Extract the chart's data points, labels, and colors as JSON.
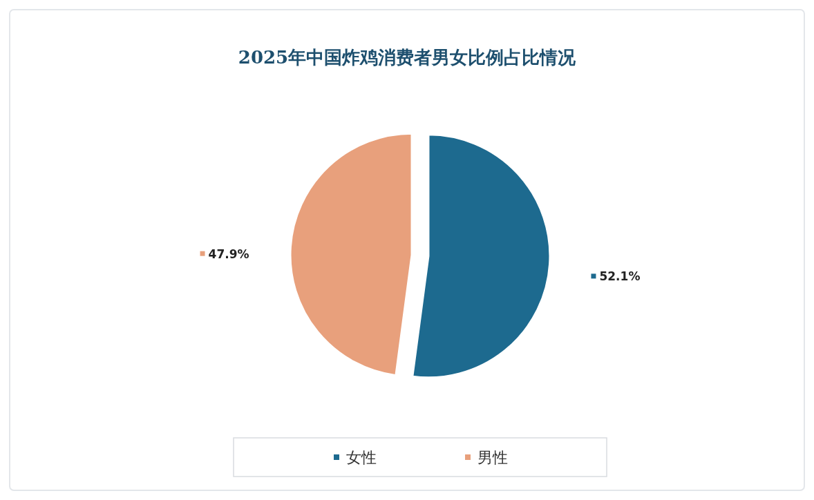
{
  "chart_data": {
    "type": "pie",
    "title": "2025年中国炸鸡消费者男女比例占比情况",
    "categories": [
      "女性",
      "男性"
    ],
    "values": [
      52.1,
      47.9
    ],
    "colors": [
      "#1d6a8f",
      "#e8a07c"
    ],
    "value_labels": [
      "52.1%",
      "47.9%"
    ],
    "legend": "bottom"
  }
}
